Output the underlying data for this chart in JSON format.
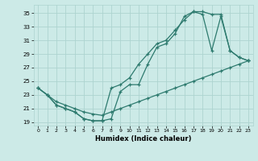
{
  "xlabel": "Humidex (Indice chaleur)",
  "background_color": "#cceae7",
  "grid_color": "#add4d0",
  "line_color": "#2d7a6e",
  "xlim": [
    -0.5,
    23.5
  ],
  "ylim": [
    18.5,
    36.2
  ],
  "xticks": [
    0,
    1,
    2,
    3,
    4,
    5,
    6,
    7,
    8,
    9,
    10,
    11,
    12,
    13,
    14,
    15,
    16,
    17,
    18,
    19,
    20,
    21,
    22,
    23
  ],
  "yticks": [
    19,
    21,
    23,
    25,
    27,
    29,
    31,
    33,
    35
  ],
  "line1_x": [
    0,
    1,
    2,
    3,
    4,
    5,
    6,
    7,
    8,
    9,
    10,
    11,
    12,
    13,
    14,
    15,
    16,
    17,
    18,
    19,
    20,
    21,
    22,
    23
  ],
  "line1_y": [
    24,
    23,
    21.5,
    21,
    20.5,
    19.5,
    19.2,
    19.2,
    19.5,
    23.5,
    24.5,
    24.5,
    27.5,
    30,
    30.5,
    32,
    34.5,
    35.2,
    34.8,
    29.5,
    34.5,
    29.5,
    28.5,
    28
  ],
  "line2_x": [
    0,
    1,
    2,
    3,
    4,
    5,
    6,
    7,
    8,
    9,
    10,
    11,
    12,
    13,
    14,
    15,
    16,
    17,
    18,
    19,
    20,
    21,
    22,
    23
  ],
  "line2_y": [
    24,
    23,
    21.5,
    21,
    20.5,
    19.5,
    19.2,
    19.2,
    24,
    24.5,
    25.5,
    27.5,
    29,
    30.5,
    31,
    32.5,
    34,
    35.2,
    35.2,
    34.8,
    34.8,
    29.5,
    28.5,
    28
  ],
  "line3_x": [
    0,
    1,
    2,
    3,
    4,
    5,
    6,
    7,
    8,
    9,
    10,
    11,
    12,
    13,
    14,
    15,
    16,
    17,
    18,
    19,
    20,
    21,
    22,
    23
  ],
  "line3_y": [
    24,
    23,
    22,
    21.5,
    21,
    20.5,
    20.2,
    20,
    20.5,
    21,
    21.5,
    22,
    22.5,
    23,
    23.5,
    24,
    24.5,
    25,
    25.5,
    26,
    26.5,
    27,
    27.5,
    28
  ]
}
